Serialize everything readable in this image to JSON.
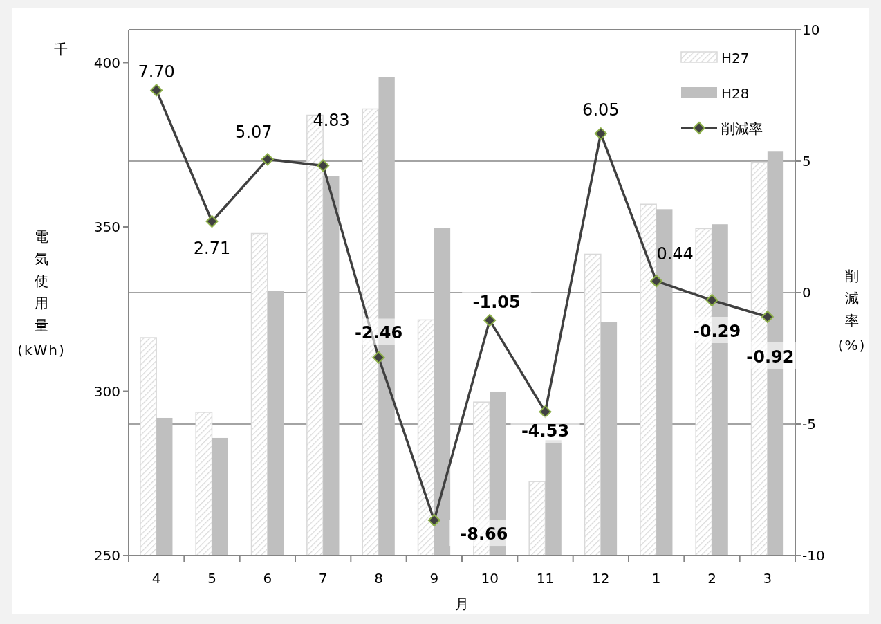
{
  "chart_data": {
    "type": "bar",
    "xlabel": "月",
    "ylabel": "電気使用量(kWh)",
    "y2label": "削減率(%)",
    "annotations": [
      "千"
    ],
    "categories": [
      "4",
      "5",
      "6",
      "7",
      "8",
      "9",
      "10",
      "11",
      "12",
      "1",
      "2",
      "3"
    ],
    "series": [
      {
        "name": "H27",
        "color": "#d9d9d9",
        "values": [
          316.3,
          293.6,
          348.0,
          384.0,
          385.9,
          321.7,
          296.7,
          272.5,
          341.7,
          356.9,
          349.5,
          369.7
        ]
      },
      {
        "name": "H28",
        "color": "#bfbfbf",
        "values": [
          291.9,
          285.8,
          330.6,
          365.5,
          395.6,
          349.7,
          299.9,
          285.1,
          321.1,
          355.4,
          350.8,
          373.1
        ]
      },
      {
        "name": "削減率",
        "type": "line",
        "axis": "y2",
        "color": "#404040",
        "marker": "diamond",
        "value_labels": [
          "7.70",
          "2.71",
          "5.07",
          "4.83",
          "-2.46",
          "-8.66",
          "-1.05",
          "-4.53",
          "6.05",
          "0.44",
          "-0.29",
          "-0.92"
        ],
        "values": [
          7.7,
          2.71,
          5.07,
          4.83,
          -2.46,
          -8.66,
          -1.05,
          -4.53,
          6.05,
          0.44,
          -0.29,
          -0.92
        ]
      }
    ],
    "ylim": [
      250,
      410
    ],
    "yticks": [
      250,
      300,
      350,
      400
    ],
    "y2lim": [
      -10,
      10
    ],
    "y2ticks": [
      -10,
      -5,
      0,
      5,
      10
    ],
    "grid": "y2",
    "legend": "top right"
  }
}
